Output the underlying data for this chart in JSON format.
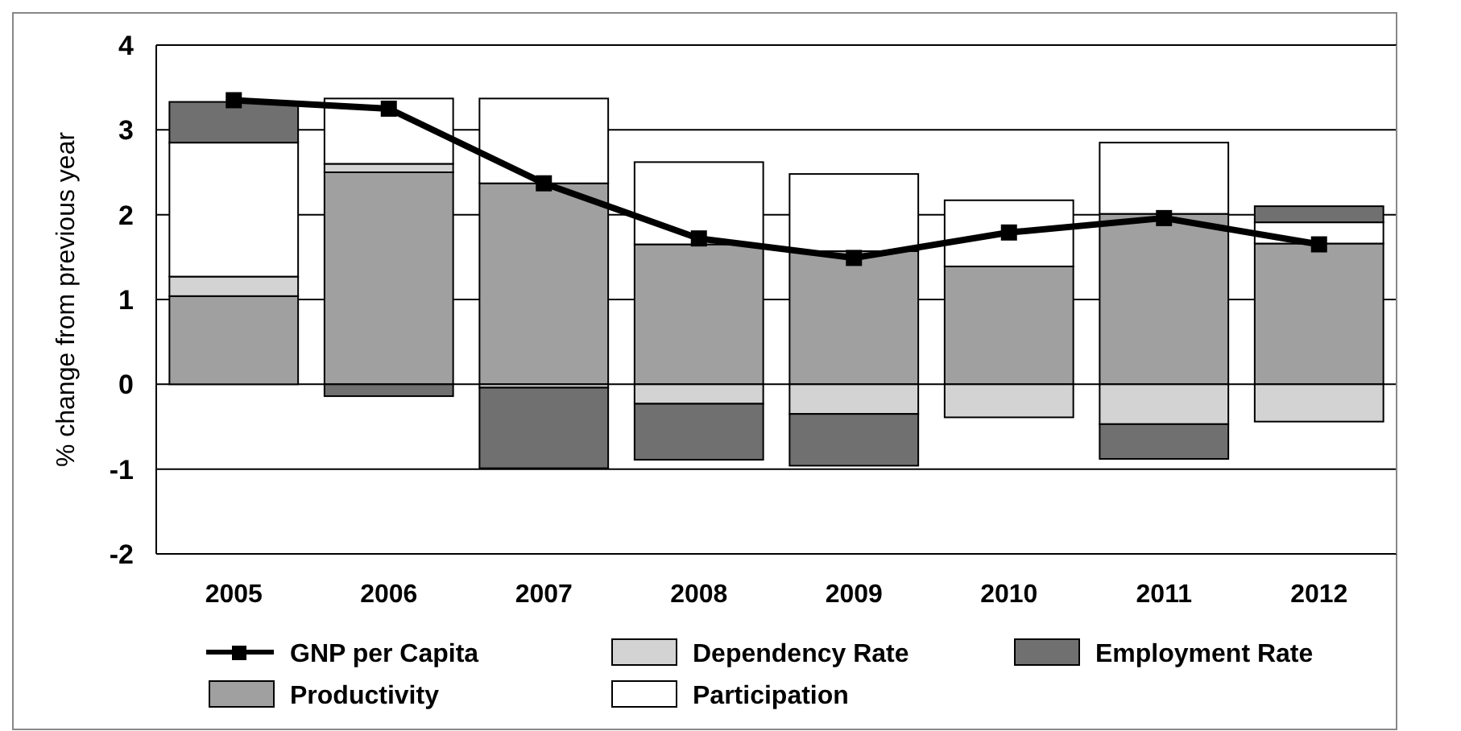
{
  "chart_data": {
    "type": "bar",
    "stacked": true,
    "ylabel": "% change from previous year",
    "categories": [
      "2005",
      "2006",
      "2007",
      "2008",
      "2009",
      "2010",
      "2011",
      "2012"
    ],
    "series": [
      {
        "name": "GNP per Capita",
        "type": "line",
        "color": "#000000",
        "marker": "square",
        "values": [
          3.35,
          3.25,
          2.37,
          1.72,
          1.49,
          1.79,
          1.96,
          1.65
        ]
      },
      {
        "name": "Productivity",
        "color": "#a0a0a0",
        "values": [
          1.04,
          2.5,
          2.37,
          1.65,
          1.57,
          1.39,
          2.01,
          1.66
        ]
      },
      {
        "name": "Dependency Rate",
        "color": "#d3d3d3",
        "values": [
          0.23,
          0.1,
          -0.04,
          -0.23,
          -0.35,
          -0.39,
          -0.47,
          -0.44
        ]
      },
      {
        "name": "Participation",
        "color": "#ffffff",
        "values": [
          1.58,
          0.77,
          1.0,
          0.97,
          0.91,
          0.78,
          0.84,
          0.25
        ]
      },
      {
        "name": "Employment Rate",
        "color": "#707070",
        "values": [
          0.48,
          -0.14,
          -0.95,
          -0.66,
          -0.61,
          0,
          -0.41,
          0.19
        ]
      }
    ],
    "ylim": [
      -2,
      4
    ],
    "yticks": [
      -2,
      -1,
      0,
      1,
      2,
      3,
      4
    ],
    "grid": "y",
    "legend": "bottom"
  }
}
